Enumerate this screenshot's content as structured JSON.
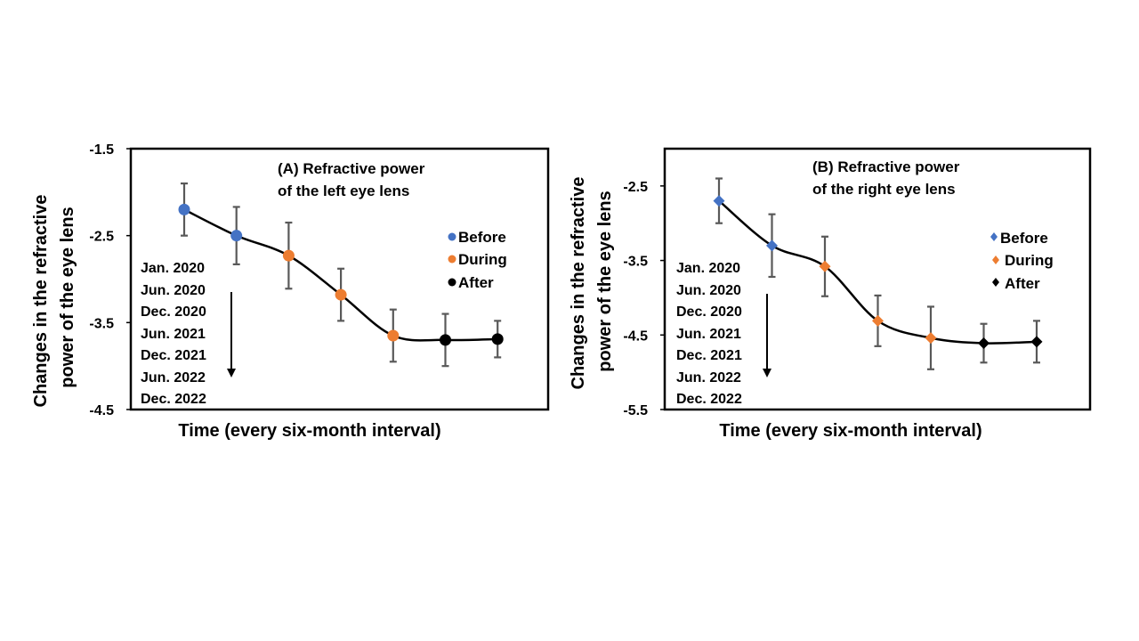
{
  "chart_data": [
    {
      "type": "line",
      "panel": "A",
      "title_line1": "(A) Refractive power",
      "title_line2": "of the left eye lens",
      "ylabel_line1": "Changes in the refractive",
      "ylabel_line2": "power of the eye lens",
      "xlabel": "Time (every six-month interval)",
      "ylim": [
        -4.5,
        -1.5
      ],
      "yticks": [
        -1.5,
        -2.5,
        -3.5,
        -4.5
      ],
      "ytick_labels": [
        "-1.5",
        "-2.5",
        "-3.5",
        "-4.5"
      ],
      "marker": "circle",
      "x": [
        1,
        2,
        3,
        4,
        5,
        6,
        7
      ],
      "categories": [
        "Jan. 2020",
        "Jun. 2020",
        "Dec. 2020",
        "Jun. 2021",
        "Dec. 2021",
        "Jun. 2022",
        "Dec. 2022"
      ],
      "values": [
        -2.2,
        -2.5,
        -2.73,
        -3.18,
        -3.65,
        -3.7,
        -3.69
      ],
      "errors": [
        0.3,
        0.33,
        0.38,
        0.3,
        0.3,
        0.3,
        0.21
      ],
      "phases": [
        "before",
        "before",
        "during",
        "during",
        "during",
        "after",
        "after"
      ],
      "legend": [
        {
          "key": "before",
          "label": "Before",
          "color": "#4472C4"
        },
        {
          "key": "during",
          "label": "During",
          "color": "#ED7D31"
        },
        {
          "key": "after",
          "label": "After",
          "color": "#000000"
        }
      ]
    },
    {
      "type": "line",
      "panel": "B",
      "title_line1": "(B) Refractive power",
      "title_line2": "of the right eye lens",
      "ylabel_line1": "Changes in the refractive",
      "ylabel_line2": "power of the eye lens",
      "xlabel": "Time (every six-month interval)",
      "ylim": [
        -5.5,
        -2.0
      ],
      "yticks": [
        -2.5,
        -3.5,
        -4.5,
        -5.5
      ],
      "ytick_labels": [
        "-2.5",
        "-3.5",
        "-4.5",
        "-5.5"
      ],
      "marker": "diamond",
      "x": [
        1,
        2,
        3,
        4,
        5,
        6,
        7
      ],
      "categories": [
        "Jan. 2020",
        "Jun. 2020",
        "Dec. 2020",
        "Jun. 2021",
        "Dec. 2021",
        "Jun. 2022",
        "Dec. 2022"
      ],
      "values": [
        -2.7,
        -3.3,
        -3.58,
        -4.31,
        -4.54,
        -4.61,
        -4.59
      ],
      "errors": [
        0.3,
        0.42,
        0.4,
        0.34,
        0.42,
        0.26,
        0.28
      ],
      "phases": [
        "before",
        "before",
        "during",
        "during",
        "during",
        "after",
        "after"
      ],
      "legend": [
        {
          "key": "before",
          "label": "Before",
          "color": "#4472C4"
        },
        {
          "key": "during",
          "label": "During",
          "color": "#ED7D31"
        },
        {
          "key": "after",
          "label": "After",
          "color": "#000000"
        }
      ]
    }
  ]
}
